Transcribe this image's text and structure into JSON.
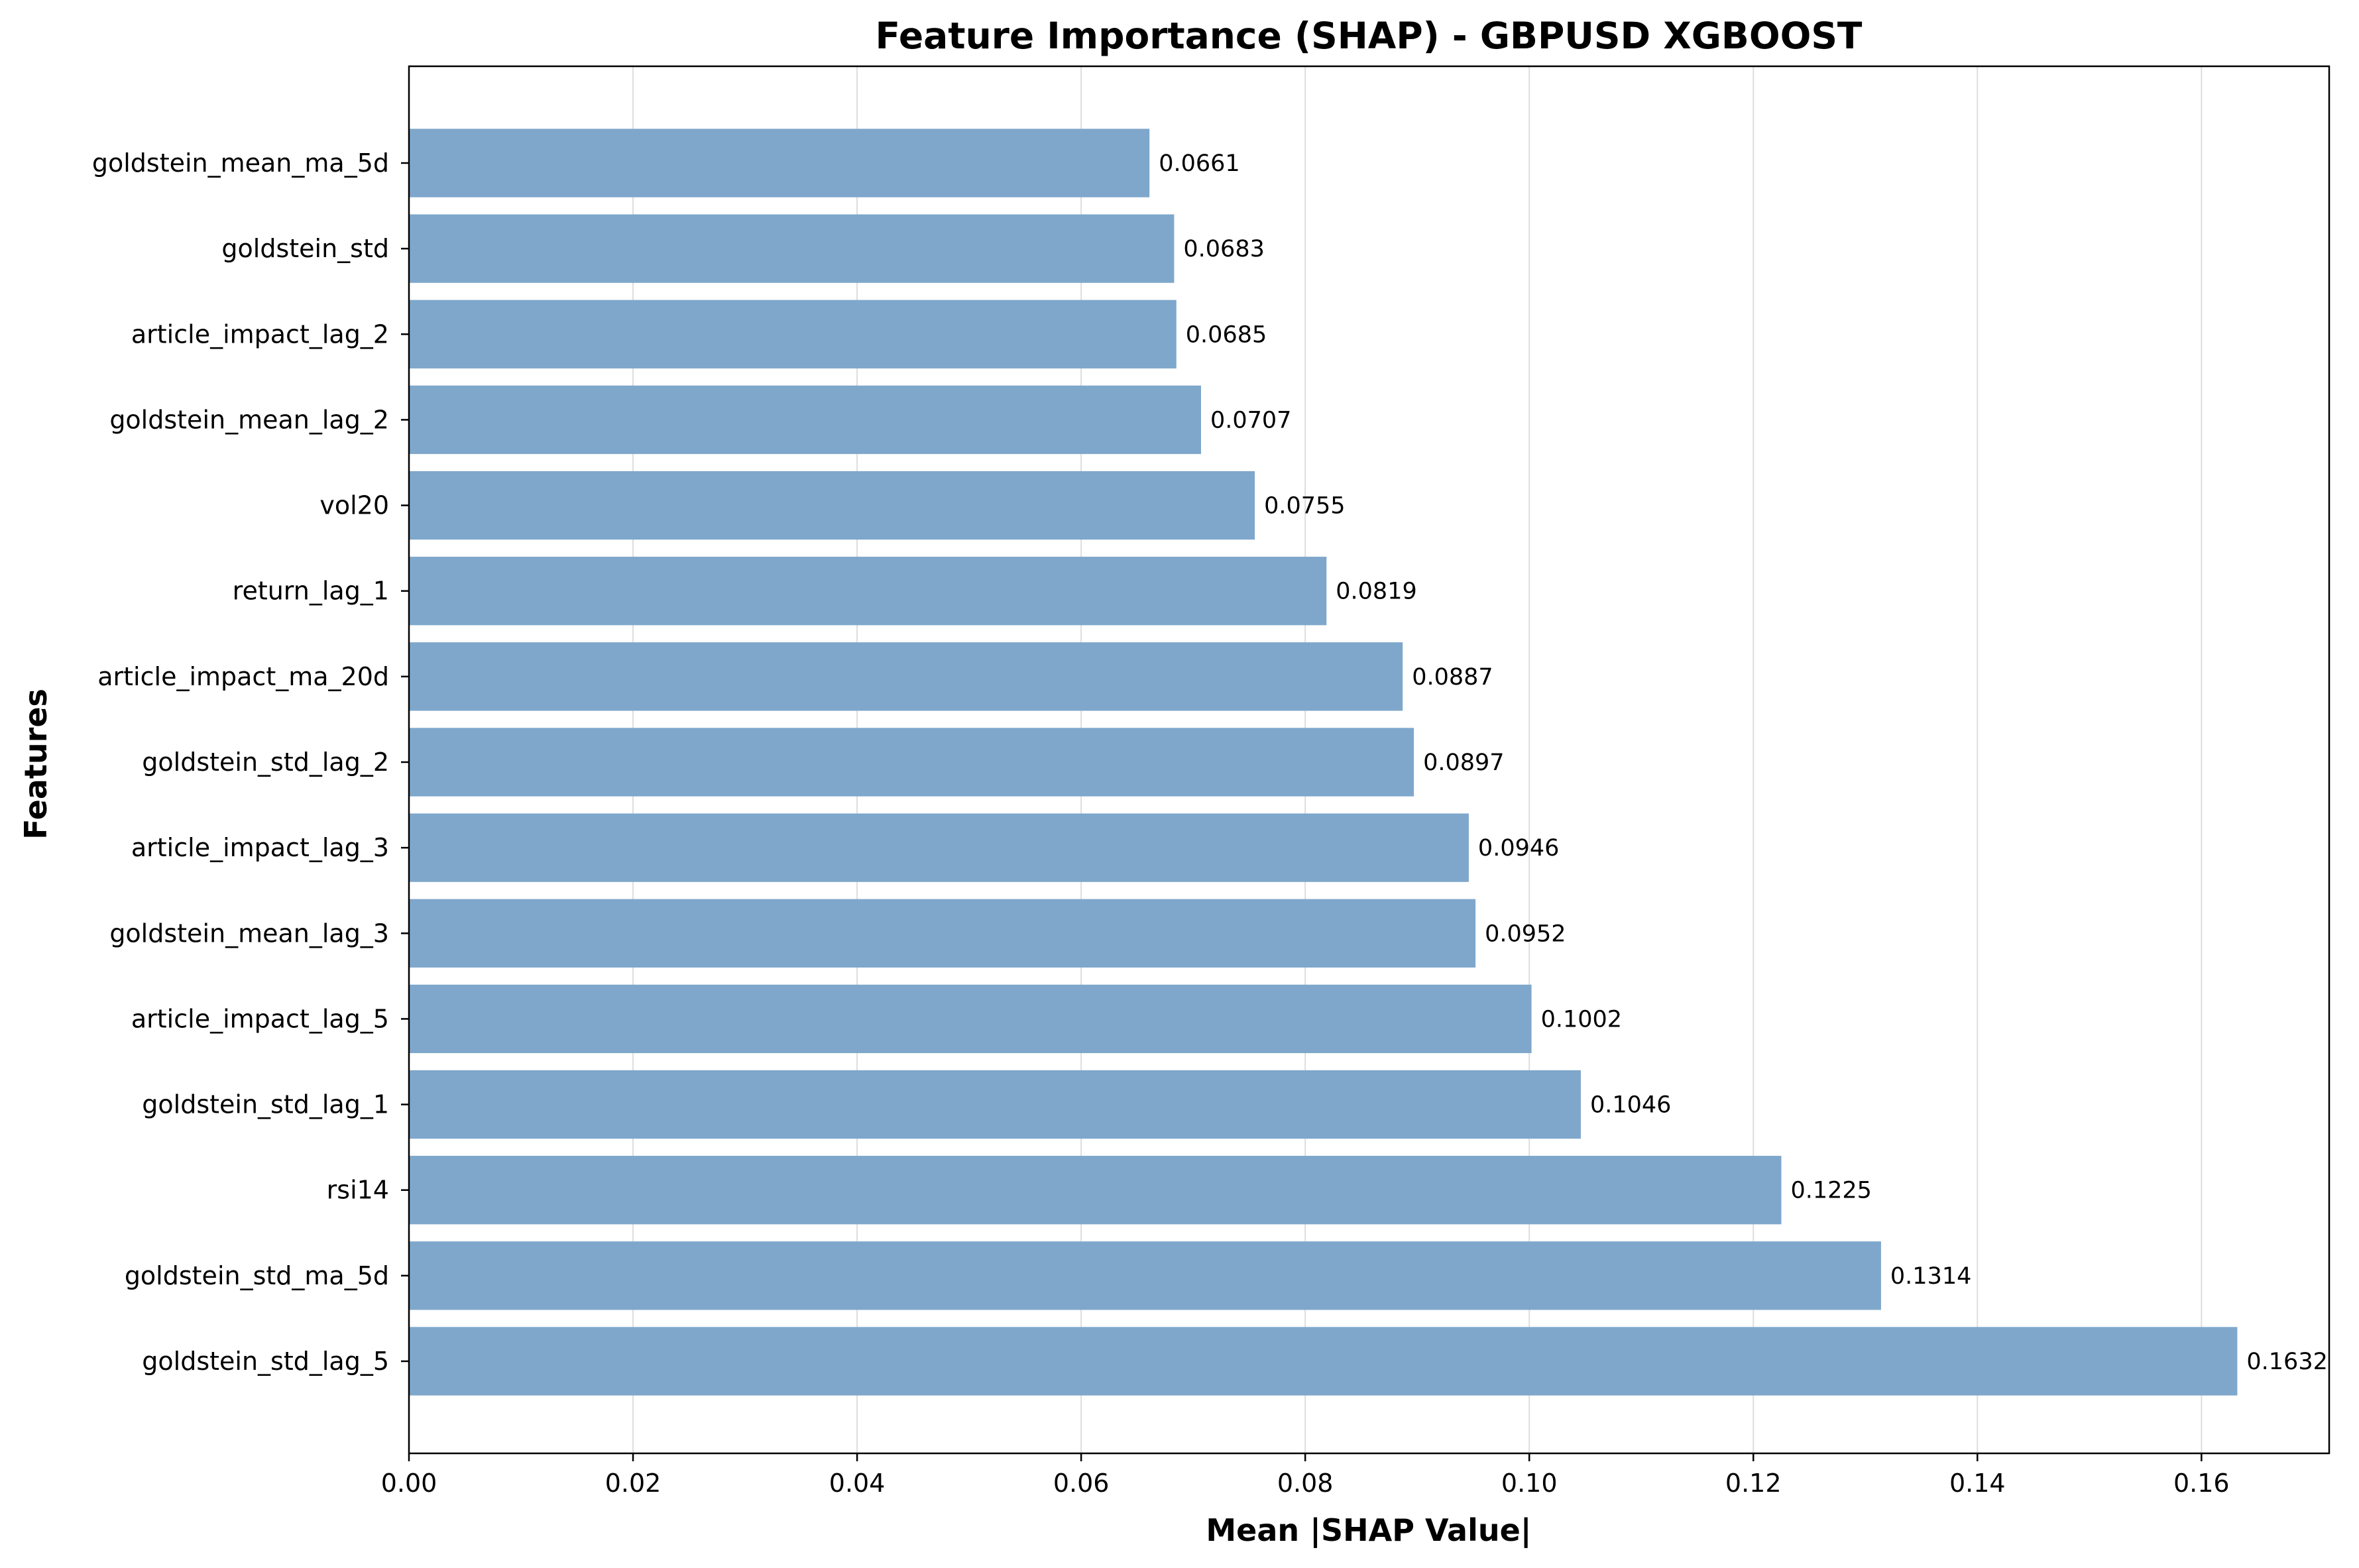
{
  "chart_data": {
    "type": "bar",
    "orientation": "horizontal",
    "title": "Feature Importance (SHAP) - GBPUSD XGBOOST",
    "xlabel": "Mean |SHAP Value|",
    "ylabel": "Features",
    "xlim": [
      0,
      0.1714
    ],
    "xticks": [
      0.0,
      0.02,
      0.04,
      0.06,
      0.08,
      0.1,
      0.12,
      0.14,
      0.16
    ],
    "xtick_labels": [
      "0.00",
      "0.02",
      "0.04",
      "0.06",
      "0.08",
      "0.10",
      "0.12",
      "0.14",
      "0.16"
    ],
    "grid": "x-axis vertical lines",
    "bar_color": "#7ea7cb",
    "categories": [
      "goldstein_mean_ma_5d",
      "goldstein_std",
      "article_impact_lag_2",
      "goldstein_mean_lag_2",
      "vol20",
      "return_lag_1",
      "article_impact_ma_20d",
      "goldstein_std_lag_2",
      "article_impact_lag_3",
      "goldstein_mean_lag_3",
      "article_impact_lag_5",
      "goldstein_std_lag_1",
      "rsi14",
      "goldstein_std_ma_5d",
      "goldstein_std_lag_5"
    ],
    "values": [
      0.0661,
      0.0683,
      0.0685,
      0.0707,
      0.0755,
      0.0819,
      0.0887,
      0.0897,
      0.0946,
      0.0952,
      0.1002,
      0.1046,
      0.1225,
      0.1314,
      0.1632
    ],
    "value_labels": [
      "0.0661",
      "0.0683",
      "0.0685",
      "0.0707",
      "0.0755",
      "0.0819",
      "0.0887",
      "0.0897",
      "0.0946",
      "0.0952",
      "0.1002",
      "0.1046",
      "0.1225",
      "0.1314",
      "0.1632"
    ]
  }
}
